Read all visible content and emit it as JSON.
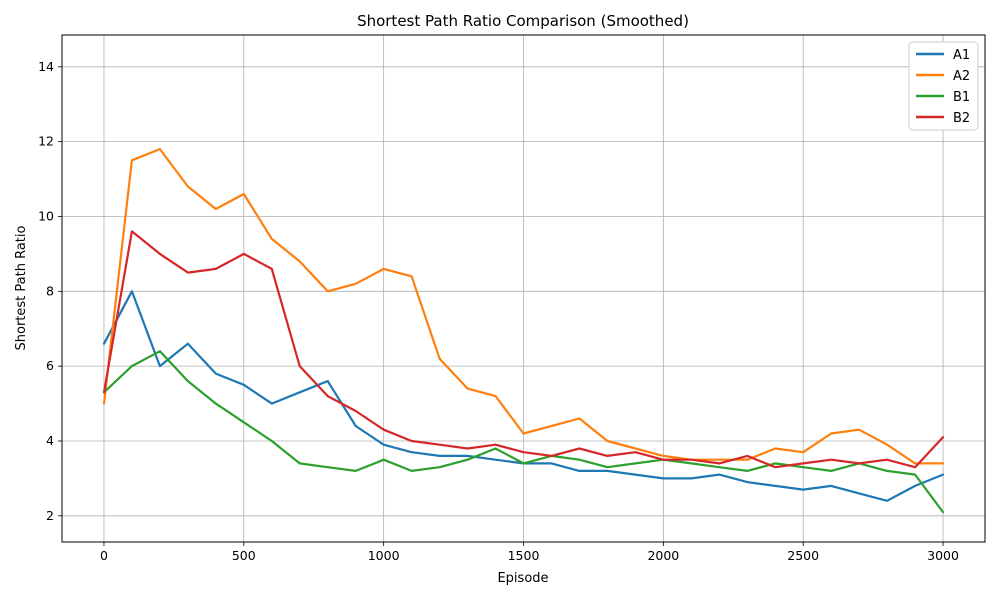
{
  "chart_data": {
    "type": "line",
    "title": "Shortest Path Ratio Comparison (Smoothed)",
    "xlabel": "Episode",
    "ylabel": "Shortest Path Ratio",
    "xlim": [
      -150,
      3150
    ],
    "ylim": [
      1.3,
      14.85
    ],
    "xticks": [
      0,
      500,
      1000,
      1500,
      2000,
      2500,
      3000
    ],
    "yticks": [
      2,
      4,
      6,
      8,
      10,
      12,
      14
    ],
    "grid": true,
    "legend": "top-right",
    "colors": {
      "A1": "#1f77b4",
      "A2": "#ff7f0e",
      "B1": "#2ca02c",
      "B2": "#d62728"
    },
    "x": [
      0,
      100,
      200,
      300,
      400,
      500,
      600,
      700,
      800,
      900,
      1000,
      1100,
      1200,
      1300,
      1400,
      1500,
      1600,
      1700,
      1800,
      1900,
      2000,
      2100,
      2200,
      2300,
      2400,
      2500,
      2600,
      2700,
      2800,
      2900,
      3000
    ],
    "series": [
      {
        "name": "A1",
        "values": [
          6.6,
          8.0,
          6.0,
          6.6,
          5.8,
          5.5,
          5.0,
          5.3,
          5.6,
          4.4,
          3.9,
          3.7,
          3.6,
          3.6,
          3.5,
          3.4,
          3.4,
          3.2,
          3.2,
          3.1,
          3.0,
          3.0,
          3.1,
          2.9,
          2.8,
          2.7,
          2.8,
          2.6,
          2.4,
          2.8,
          3.1
        ]
      },
      {
        "name": "A2",
        "values": [
          5.0,
          11.5,
          11.8,
          10.8,
          10.2,
          10.6,
          9.4,
          8.8,
          8.0,
          8.2,
          8.6,
          8.4,
          6.2,
          5.4,
          5.2,
          4.2,
          4.4,
          4.6,
          4.0,
          3.8,
          3.6,
          3.5,
          3.5,
          3.5,
          3.8,
          3.7,
          4.2,
          4.3,
          3.9,
          3.4,
          3.4
        ]
      },
      {
        "name": "B1",
        "values": [
          5.3,
          6.0,
          6.4,
          5.6,
          5.0,
          4.5,
          4.0,
          3.4,
          3.3,
          3.2,
          3.5,
          3.2,
          3.3,
          3.5,
          3.8,
          3.4,
          3.6,
          3.5,
          3.3,
          3.4,
          3.5,
          3.4,
          3.3,
          3.2,
          3.4,
          3.3,
          3.2,
          3.4,
          3.2,
          3.1,
          2.1
        ]
      },
      {
        "name": "B2",
        "values": [
          5.3,
          9.6,
          9.0,
          8.5,
          8.6,
          9.0,
          8.6,
          6.0,
          5.2,
          4.8,
          4.3,
          4.0,
          3.9,
          3.8,
          3.9,
          3.7,
          3.6,
          3.8,
          3.6,
          3.7,
          3.5,
          3.5,
          3.4,
          3.6,
          3.3,
          3.4,
          3.5,
          3.4,
          3.5,
          3.3,
          4.1
        ]
      }
    ]
  }
}
